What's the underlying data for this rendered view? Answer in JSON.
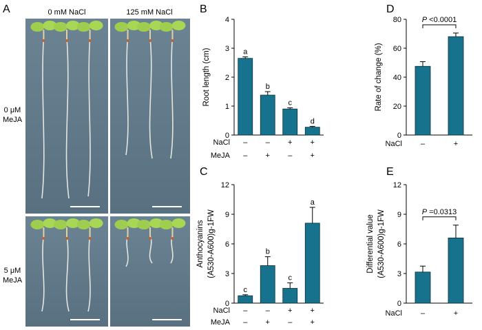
{
  "panel_a": {
    "label": "A",
    "col_headers": [
      "0 mM NaCl",
      "125 mM NaCl"
    ],
    "row_labels": [
      [
        "0 μM",
        "MeJA"
      ],
      [
        "5 μM",
        "MeJA"
      ]
    ]
  },
  "colors": {
    "bar": "#17728d",
    "photo_bg": "#5f7787",
    "seedling_leaf": "#9fce4e",
    "root": "#e6e6e0"
  },
  "condition_labels": {
    "nacl": "NaCl",
    "meja": "MeJA",
    "minus": "–",
    "plus": "+"
  },
  "chart_data": [
    {
      "id": "B",
      "label": "B",
      "type": "bar",
      "ylabel": "Root length (cm)",
      "ylim": [
        0,
        4
      ],
      "yticks": [
        0,
        1,
        2,
        3,
        4
      ],
      "nacl": [
        "–",
        "–",
        "+",
        "+"
      ],
      "meja": [
        "–",
        "+",
        "–",
        "+"
      ],
      "values": [
        2.65,
        1.38,
        0.9,
        0.27
      ],
      "errors": [
        0.05,
        0.12,
        0.04,
        0.03
      ],
      "letters": [
        "a",
        "b",
        "c",
        "d"
      ]
    },
    {
      "id": "C",
      "label": "C",
      "type": "bar",
      "ylabel": "Anthocyanins",
      "ylabel_sub": "(A530-A600)g-1FW",
      "ylim": [
        0,
        12
      ],
      "yticks": [
        0,
        3,
        6,
        9,
        12
      ],
      "nacl": [
        "–",
        "–",
        "+",
        "+"
      ],
      "meja": [
        "–",
        "+",
        "–",
        "+"
      ],
      "values": [
        0.75,
        3.8,
        1.5,
        8.1
      ],
      "errors": [
        0.1,
        0.9,
        0.55,
        1.6
      ],
      "letters": [
        "c",
        "b",
        "c",
        "a"
      ]
    },
    {
      "id": "D",
      "label": "D",
      "type": "bar",
      "ylabel": "Rate of change (%)",
      "ylim": [
        0,
        80
      ],
      "yticks": [
        0,
        20,
        40,
        60,
        80
      ],
      "nacl": [
        "–",
        "+"
      ],
      "values": [
        47.5,
        68
      ],
      "errors": [
        3.2,
        2.5
      ],
      "pvalue_italic": "P",
      "pvalue_text": " <0.0001"
    },
    {
      "id": "E",
      "label": "E",
      "type": "bar",
      "ylabel": "Differential value",
      "ylabel_sub": "(A530-A600)g-1FW",
      "ylim": [
        0,
        12
      ],
      "yticks": [
        0,
        3,
        6,
        9,
        12
      ],
      "nacl": [
        "–",
        "+"
      ],
      "values": [
        3.15,
        6.6
      ],
      "errors": [
        0.6,
        1.3
      ],
      "pvalue_italic": "P",
      "pvalue_text": " =0.0313"
    }
  ]
}
